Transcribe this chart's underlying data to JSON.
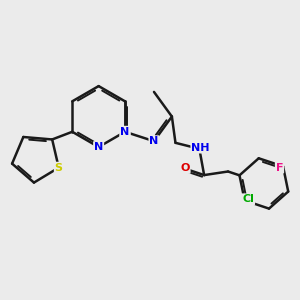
{
  "bg_color": "#ebebeb",
  "bond_color": "#1a1a1a",
  "bond_width": 1.8,
  "atom_colors": {
    "N": "#0000ee",
    "S": "#cccc00",
    "O": "#dd0000",
    "Cl": "#00aa00",
    "F": "#ee1188",
    "H": "#666666",
    "C": "#1a1a1a"
  },
  "font_size": 8.0
}
